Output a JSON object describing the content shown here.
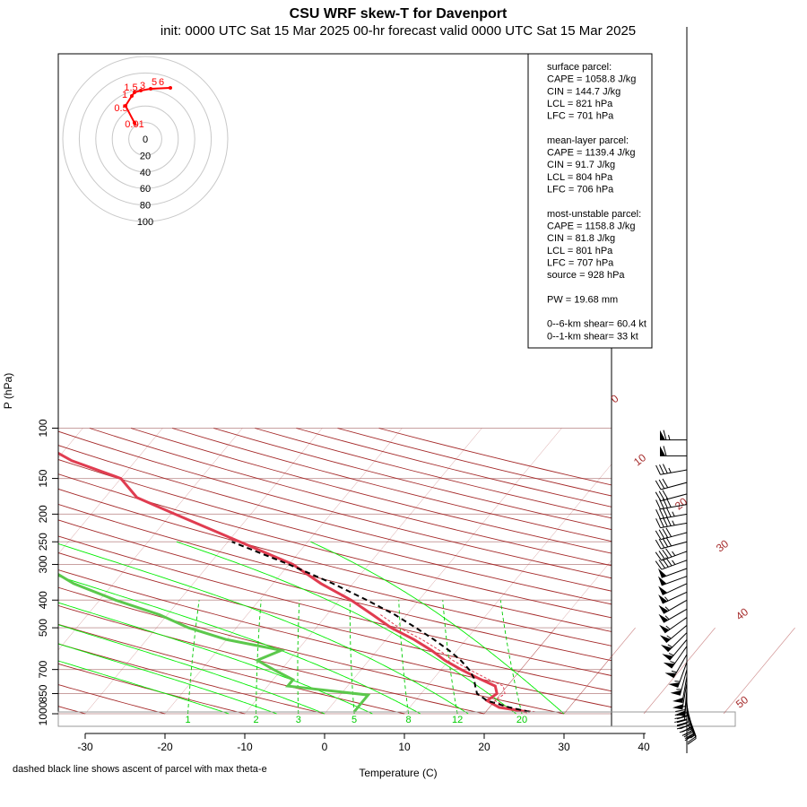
{
  "title": "CSU WRF skew-T for Davenport",
  "subtitle": "init: 0000 UTC Sat 15 Mar 2025    00-hr forecast valid 0000 UTC Sat 15 Mar 2025",
  "footnote": "dashed black line shows ascent of parcel with max theta-e",
  "colors": {
    "isotherm": "#a52a2a",
    "isobar": "#c8a0a0",
    "dry_adiabat": "#a52a2a",
    "moist_adiabat": "#00ee00",
    "mixing_ratio": "#00cc00",
    "temperature": "#e03c50",
    "dewpoint": "#5cc84c",
    "parcel": "#000000",
    "hodograph": "#ff0000"
  },
  "chart_data": {
    "type": "skew-T",
    "xlabel": "Temperature (C)",
    "ylabel": "P (hPa)",
    "x_ticks": [
      -30,
      -20,
      -10,
      0,
      10,
      20,
      30,
      40
    ],
    "x_tick_labels": [
      "-30",
      "-20",
      "-10",
      "0",
      "10",
      "20",
      "30",
      "40"
    ],
    "y_ticks": [
      100,
      150,
      200,
      250,
      300,
      400,
      500,
      700,
      850,
      1000
    ],
    "y_tick_labels": [
      "100",
      "150",
      "200",
      "250",
      "300",
      "400",
      "500",
      "700",
      "850",
      "1000"
    ],
    "xlim": [
      -33,
      45
    ],
    "ylim": [
      1000,
      100
    ],
    "isotherm_labels": [
      {
        "t": 0,
        "text": "0"
      },
      {
        "t": 10,
        "text": "10"
      },
      {
        "t": 20,
        "text": "20"
      },
      {
        "t": 30,
        "text": "30"
      },
      {
        "t": 40,
        "text": "40"
      },
      {
        "t": 50,
        "text": "50"
      }
    ],
    "mixing_ratio_labels": [
      {
        "w": 1,
        "text": "1"
      },
      {
        "w": 2,
        "text": "2"
      },
      {
        "w": 3,
        "text": "3"
      },
      {
        "w": 5,
        "text": "5"
      },
      {
        "w": 8,
        "text": "8"
      },
      {
        "w": 12,
        "text": "12"
      },
      {
        "w": 20,
        "text": "20"
      }
    ],
    "temperature": [
      {
        "p": 985,
        "t": 25.2
      },
      {
        "p": 950,
        "t": 21.2
      },
      {
        "p": 900,
        "t": 19.0
      },
      {
        "p": 850,
        "t": 19.5
      },
      {
        "p": 800,
        "t": 18.5
      },
      {
        "p": 750,
        "t": 15.5
      },
      {
        "p": 700,
        "t": 12.5
      },
      {
        "p": 650,
        "t": 9.5
      },
      {
        "p": 600,
        "t": 6.8
      },
      {
        "p": 550,
        "t": 3.5
      },
      {
        "p": 500,
        "t": -0.6
      },
      {
        "p": 450,
        "t": -4.3
      },
      {
        "p": 400,
        "t": -8.5
      },
      {
        "p": 350,
        "t": -14.0
      },
      {
        "p": 300,
        "t": -19.5
      },
      {
        "p": 250,
        "t": -28.5
      },
      {
        "p": 200,
        "t": -39.5
      },
      {
        "p": 175,
        "t": -46.0
      },
      {
        "p": 150,
        "t": -50.0
      },
      {
        "p": 130,
        "t": -58.0
      },
      {
        "p": 115,
        "t": -63.0
      },
      {
        "p": 105,
        "t": -67.0
      }
    ],
    "dewpoint": [
      {
        "p": 985,
        "t": 3.5
      },
      {
        "p": 950,
        "t": 3.5
      },
      {
        "p": 900,
        "t": 3.5
      },
      {
        "p": 860,
        "t": 3.5
      },
      {
        "p": 800,
        "t": -7.5
      },
      {
        "p": 760,
        "t": -7.5
      },
      {
        "p": 700,
        "t": -11.0
      },
      {
        "p": 650,
        "t": -14.0
      },
      {
        "p": 600,
        "t": -12.0
      },
      {
        "p": 550,
        "t": -20.0
      },
      {
        "p": 500,
        "t": -26.0
      },
      {
        "p": 450,
        "t": -31.0
      },
      {
        "p": 400,
        "t": -38.0
      },
      {
        "p": 350,
        "t": -45.0
      },
      {
        "p": 300,
        "t": -51.0
      },
      {
        "p": 250,
        "t": -58.0
      },
      {
        "p": 220,
        "t": -63.0
      },
      {
        "p": 200,
        "t": -68.0
      },
      {
        "p": 180,
        "t": -74.0
      }
    ],
    "dewpoint_upper": [
      {
        "p": 130,
        "t": -84.0
      },
      {
        "p": 110,
        "t": -89.0
      }
    ],
    "parcel": [
      {
        "p": 985,
        "t": 25.5
      },
      {
        "p": 950,
        "t": 22.5
      },
      {
        "p": 900,
        "t": 19.0
      },
      {
        "p": 850,
        "t": 17.0
      },
      {
        "p": 800,
        "t": 16.0
      },
      {
        "p": 750,
        "t": 15.0
      },
      {
        "p": 700,
        "t": 13.5
      },
      {
        "p": 650,
        "t": 11.5
      },
      {
        "p": 600,
        "t": 9.0
      },
      {
        "p": 550,
        "t": 6.0
      },
      {
        "p": 500,
        "t": 2.5
      },
      {
        "p": 450,
        "t": -1.5
      },
      {
        "p": 400,
        "t": -6.5
      },
      {
        "p": 350,
        "t": -12.5
      },
      {
        "p": 300,
        "t": -20.0
      },
      {
        "p": 250,
        "t": -29.5
      }
    ],
    "hodograph": {
      "rings": [
        "0",
        "20",
        "40",
        "60",
        "80",
        "100"
      ],
      "points": [
        {
          "label": "0.01"
        },
        {
          "label": "0.5"
        },
        {
          "label": "1"
        },
        {
          "label": "1.5"
        },
        {
          "label": "3"
        },
        {
          "label": "5"
        },
        {
          "label": "6"
        }
      ]
    }
  },
  "parcel_panel": {
    "lines": [
      "surface parcel:",
      "CAPE = 1058.8 J/kg",
      "CIN = 144.7 J/kg",
      "LCL = 821 hPa",
      "LFC = 701 hPa",
      "",
      "mean-layer parcel:",
      "CAPE = 1139.4 J/kg",
      "CIN = 91.7 J/kg",
      "LCL = 804 hPa",
      "LFC = 706 hPa",
      "",
      "most-unstable parcel:",
      "CAPE = 1158.8 J/kg",
      "CIN = 81.8 J/kg",
      "LCL = 801 hPa",
      "LFC = 707 hPa",
      "source = 928 hPa",
      "",
      "PW =  19.68 mm",
      "",
      "0--6-km shear= 60.4 kt",
      "0--1-km shear= 33 kt"
    ]
  },
  "wind_barbs": [
    {
      "p": 110,
      "speed": 65,
      "dir": 270
    },
    {
      "p": 125,
      "speed": 60,
      "dir": 270
    },
    {
      "p": 140,
      "speed": 35,
      "dir": 260
    },
    {
      "p": 155,
      "speed": 30,
      "dir": 255
    },
    {
      "p": 170,
      "speed": 30,
      "dir": 255
    },
    {
      "p": 185,
      "speed": 40,
      "dir": 260
    },
    {
      "p": 200,
      "speed": 45,
      "dir": 260
    },
    {
      "p": 215,
      "speed": 45,
      "dir": 260
    },
    {
      "p": 232,
      "speed": 40,
      "dir": 255
    },
    {
      "p": 250,
      "speed": 40,
      "dir": 255
    },
    {
      "p": 270,
      "speed": 45,
      "dir": 250
    },
    {
      "p": 290,
      "speed": 45,
      "dir": 250
    },
    {
      "p": 310,
      "speed": 50,
      "dir": 250
    },
    {
      "p": 330,
      "speed": 50,
      "dir": 250
    },
    {
      "p": 350,
      "speed": 50,
      "dir": 245
    },
    {
      "p": 375,
      "speed": 55,
      "dir": 245
    },
    {
      "p": 400,
      "speed": 55,
      "dir": 240
    },
    {
      "p": 430,
      "speed": 55,
      "dir": 240
    },
    {
      "p": 460,
      "speed": 55,
      "dir": 235
    },
    {
      "p": 490,
      "speed": 55,
      "dir": 230
    },
    {
      "p": 520,
      "speed": 55,
      "dir": 225
    },
    {
      "p": 550,
      "speed": 55,
      "dir": 220
    },
    {
      "p": 580,
      "speed": 55,
      "dir": 215
    },
    {
      "p": 620,
      "speed": 55,
      "dir": 210
    },
    {
      "p": 660,
      "speed": 55,
      "dir": 200
    },
    {
      "p": 700,
      "speed": 55,
      "dir": 195
    },
    {
      "p": 740,
      "speed": 50,
      "dir": 190
    },
    {
      "p": 780,
      "speed": 50,
      "dir": 190
    },
    {
      "p": 820,
      "speed": 50,
      "dir": 185
    },
    {
      "p": 850,
      "speed": 45,
      "dir": 185
    },
    {
      "p": 870,
      "speed": 40,
      "dir": 180
    },
    {
      "p": 890,
      "speed": 35,
      "dir": 180
    },
    {
      "p": 910,
      "speed": 30,
      "dir": 175
    },
    {
      "p": 930,
      "speed": 30,
      "dir": 170
    },
    {
      "p": 950,
      "speed": 30,
      "dir": 165
    },
    {
      "p": 965,
      "speed": 25,
      "dir": 165
    },
    {
      "p": 980,
      "speed": 20,
      "dir": 160
    },
    {
      "p": 995,
      "speed": 15,
      "dir": 160
    }
  ]
}
